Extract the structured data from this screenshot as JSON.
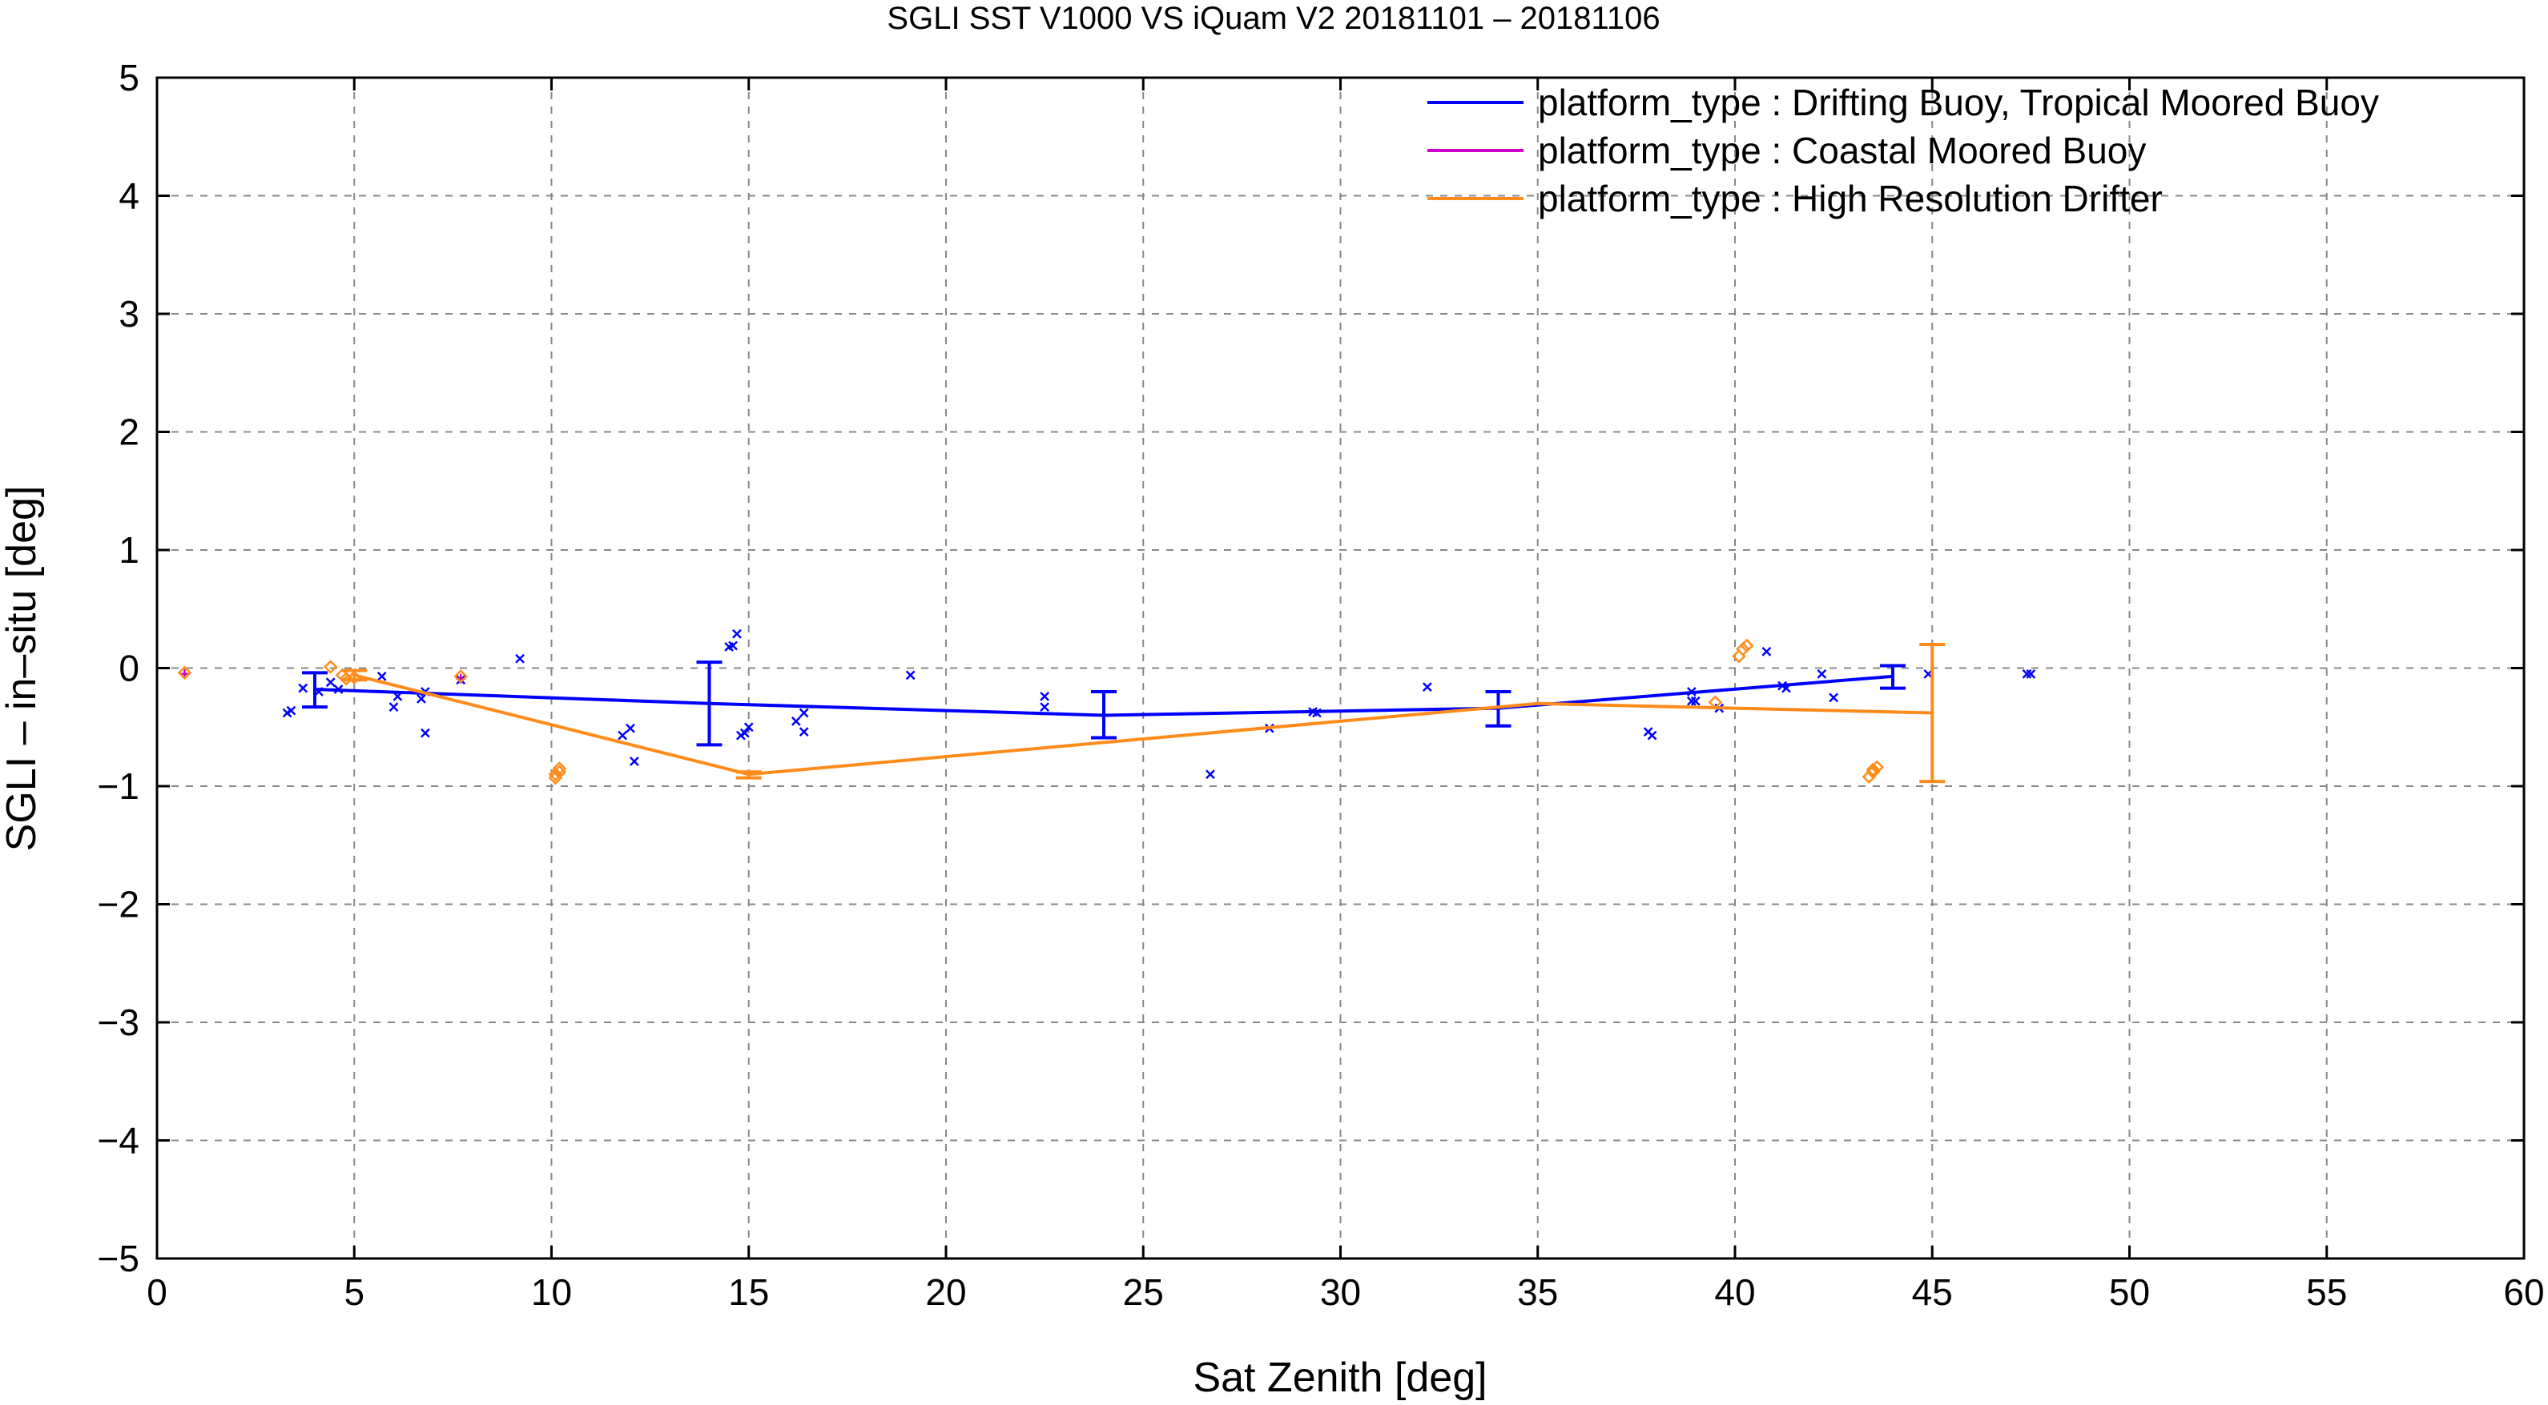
{
  "chart_data": {
    "type": "line",
    "title": "SGLI SST V1000 VS iQuam V2 20181101 – 20181106",
    "xlabel": "Sat Zenith [deg]",
    "ylabel": "SGLI – in–situ [deg]",
    "xlim": [
      0,
      60
    ],
    "ylim": [
      -5,
      5
    ],
    "xticks": [
      0,
      5,
      10,
      15,
      20,
      25,
      30,
      35,
      40,
      45,
      50,
      55,
      60
    ],
    "xtick_labels": [
      "0",
      "5",
      "10",
      "15",
      "20",
      "25",
      "30",
      "35",
      "40",
      "45",
      "50",
      "55",
      "60"
    ],
    "yticks": [
      -5,
      -4,
      -3,
      -2,
      -1,
      0,
      1,
      2,
      3,
      4,
      5
    ],
    "ytick_labels": [
      "−5",
      "−4",
      "−3",
      "−2",
      "−1",
      "0",
      "1",
      "2",
      "3",
      "4",
      "5"
    ],
    "grid": true,
    "legend_position": "top-right",
    "series": [
      {
        "name": "platform_type : Drifting Buoy, Tropical Moored Buoy",
        "color": "#0000ff",
        "marker": "x",
        "points": [
          [
            3.3,
            -0.38
          ],
          [
            3.4,
            -0.36
          ],
          [
            3.7,
            -0.17
          ],
          [
            4.1,
            -0.2
          ],
          [
            4.4,
            -0.12
          ],
          [
            4.6,
            -0.18
          ],
          [
            5.7,
            -0.07
          ],
          [
            6.0,
            -0.33
          ],
          [
            6.1,
            -0.24
          ],
          [
            6.7,
            -0.26
          ],
          [
            6.8,
            -0.55
          ],
          [
            6.8,
            -0.2
          ],
          [
            7.7,
            -0.1
          ],
          [
            9.2,
            0.08
          ],
          [
            11.8,
            -0.57
          ],
          [
            12.0,
            -0.51
          ],
          [
            12.1,
            -0.79
          ],
          [
            14.5,
            0.18
          ],
          [
            14.6,
            0.19
          ],
          [
            14.7,
            0.29
          ],
          [
            14.8,
            -0.57
          ],
          [
            14.9,
            -0.55
          ],
          [
            15.0,
            -0.5
          ],
          [
            16.2,
            -0.45
          ],
          [
            16.4,
            -0.38
          ],
          [
            16.4,
            -0.54
          ],
          [
            19.1,
            -0.06
          ],
          [
            22.5,
            -0.24
          ],
          [
            22.5,
            -0.33
          ],
          [
            26.7,
            -0.9
          ],
          [
            28.2,
            -0.51
          ],
          [
            29.3,
            -0.37
          ],
          [
            29.4,
            -0.38
          ],
          [
            32.2,
            -0.16
          ],
          [
            37.8,
            -0.54
          ],
          [
            37.9,
            -0.57
          ],
          [
            38.9,
            -0.2
          ],
          [
            38.9,
            -0.28
          ],
          [
            39.0,
            -0.28
          ],
          [
            39.6,
            -0.34
          ],
          [
            40.8,
            0.14
          ],
          [
            41.2,
            -0.15
          ],
          [
            41.3,
            -0.17
          ],
          [
            42.2,
            -0.05
          ],
          [
            42.5,
            -0.25
          ],
          [
            44.9,
            -0.05
          ],
          [
            47.4,
            -0.05
          ],
          [
            47.5,
            -0.05
          ]
        ],
        "mean_line": {
          "x": [
            4,
            14,
            24,
            34,
            44
          ],
          "y": [
            -0.18,
            -0.3,
            -0.4,
            -0.34,
            -0.07
          ]
        },
        "error_bars": [
          {
            "x": 4,
            "low": -0.33,
            "high": -0.04
          },
          {
            "x": 14,
            "low": -0.65,
            "high": 0.05
          },
          {
            "x": 24,
            "low": -0.59,
            "high": -0.2
          },
          {
            "x": 34,
            "low": -0.49,
            "high": -0.2
          },
          {
            "x": 44,
            "low": -0.17,
            "high": 0.02
          }
        ]
      },
      {
        "name": "platform_type : Coastal Moored Buoy",
        "color": "#cc00cc",
        "marker": "+",
        "points": [
          [
            0.7,
            -0.05
          ],
          [
            7.7,
            -0.09
          ]
        ],
        "mean_line": {
          "x": [],
          "y": []
        },
        "error_bars": []
      },
      {
        "name": "platform_type : High Resolution Drifter",
        "color": "#ff8c1a",
        "marker": "diamond",
        "points": [
          [
            0.7,
            -0.04
          ],
          [
            4.4,
            0.01
          ],
          [
            4.7,
            -0.06
          ],
          [
            4.8,
            -0.09
          ],
          [
            5.0,
            -0.08
          ],
          [
            7.7,
            -0.07
          ],
          [
            10.1,
            -0.9
          ],
          [
            10.1,
            -0.93
          ],
          [
            10.2,
            -0.88
          ],
          [
            10.2,
            -0.85
          ],
          [
            39.5,
            -0.29
          ],
          [
            40.1,
            0.1
          ],
          [
            40.2,
            0.16
          ],
          [
            40.3,
            0.19
          ],
          [
            43.4,
            -0.92
          ],
          [
            43.5,
            -0.88
          ],
          [
            43.5,
            -0.86
          ],
          [
            43.6,
            -0.84
          ]
        ],
        "mean_line": {
          "x": [
            5,
            15,
            35,
            45
          ],
          "y": [
            -0.06,
            -0.9,
            -0.3,
            -0.38
          ]
        },
        "error_bars": [
          {
            "x": 5,
            "low": -0.1,
            "high": -0.02
          },
          {
            "x": 15,
            "low": -0.93,
            "high": -0.88
          },
          {
            "x": 45,
            "low": -0.96,
            "high": 0.2
          }
        ]
      }
    ]
  }
}
